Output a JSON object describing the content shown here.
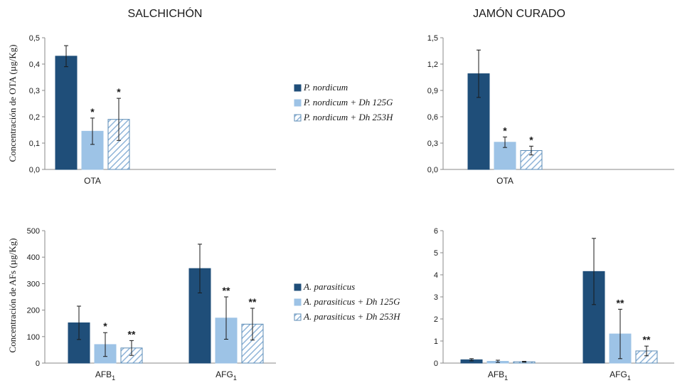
{
  "titles": {
    "left": "SALCHICHÓN",
    "right": "JAMÓN CURADO"
  },
  "colors": {
    "series1": "#1f4e79",
    "series2": "#9dc3e6",
    "series3_stroke": "#5b8bb5",
    "hatch": "#8fb4d8",
    "axis": "#888888"
  },
  "ylabels": {
    "top": "Concentración de OTA (µg/Kg)",
    "bottom": "Concentración de AFs (µg/Kg)"
  },
  "legend_top": [
    {
      "base": "P. nordicum",
      "suffix": ""
    },
    {
      "base": "P. nordicum",
      "suffix": " + Dh 125G"
    },
    {
      "base": "P. nordicum",
      "suffix": " + Dh 253H"
    }
  ],
  "legend_bottom": [
    {
      "base": "A. parasiticus",
      "suffix": ""
    },
    {
      "base": "A. parasiticus",
      "suffix": " + Dh 125G"
    },
    {
      "base": "A. parasiticus",
      "suffix": " + Dh 253H"
    }
  ],
  "chart_data": [
    {
      "type": "bar",
      "panel": "top-left",
      "title": "SALCHICHÓN",
      "ylabel": "Concentración de OTA (µg/Kg)",
      "ylim": [
        0,
        0.5
      ],
      "ticks": [
        "0,0",
        "0,1",
        "0,2",
        "0,3",
        "0,4",
        "0,5"
      ],
      "categories": [
        {
          "base": "OTA",
          "sub": ""
        }
      ],
      "series": [
        {
          "name": "P. nordicum",
          "values": [
            0.43
          ],
          "errors": [
            0.04
          ],
          "marks": [
            ""
          ]
        },
        {
          "name": "P. nordicum + Dh 125G",
          "values": [
            0.145
          ],
          "errors": [
            0.05
          ],
          "marks": [
            "*"
          ]
        },
        {
          "name": "P. nordicum + Dh 253H",
          "values": [
            0.19
          ],
          "errors": [
            0.08
          ],
          "marks": [
            "*"
          ]
        }
      ]
    },
    {
      "type": "bar",
      "panel": "top-right",
      "title": "JAMÓN CURADO",
      "ylabel": "",
      "ylim": [
        0,
        1.5
      ],
      "ticks": [
        "0,0",
        "0,3",
        "0,6",
        "0,9",
        "1,2",
        "1,5"
      ],
      "categories": [
        {
          "base": "OTA",
          "sub": ""
        }
      ],
      "series": [
        {
          "name": "P. nordicum",
          "values": [
            1.09
          ],
          "errors": [
            0.27
          ],
          "marks": [
            ""
          ]
        },
        {
          "name": "P. nordicum + Dh 125G",
          "values": [
            0.31
          ],
          "errors": [
            0.06
          ],
          "marks": [
            "*"
          ]
        },
        {
          "name": "P. nordicum + Dh 253H",
          "values": [
            0.215
          ],
          "errors": [
            0.05
          ],
          "marks": [
            "*"
          ]
        }
      ]
    },
    {
      "type": "bar",
      "panel": "bottom-left",
      "title": "",
      "ylabel": "Concentración de AFs (µg/Kg)",
      "ylim": [
        0,
        500
      ],
      "ticks": [
        "0",
        "100",
        "200",
        "300",
        "400",
        "500"
      ],
      "categories": [
        {
          "base": "AFB",
          "sub": "1"
        },
        {
          "base": "AFG",
          "sub": "1"
        }
      ],
      "series": [
        {
          "name": "A. parasiticus",
          "values": [
            152,
            357
          ],
          "errors": [
            63,
            92
          ],
          "marks": [
            "",
            ""
          ]
        },
        {
          "name": "A. parasiticus + Dh 125G",
          "values": [
            70,
            170
          ],
          "errors": [
            45,
            80
          ],
          "marks": [
            "*",
            "**"
          ]
        },
        {
          "name": "A. parasiticus + Dh 253H",
          "values": [
            57,
            147
          ],
          "errors": [
            28,
            60
          ],
          "marks": [
            "**",
            "**"
          ]
        }
      ]
    },
    {
      "type": "bar",
      "panel": "bottom-right",
      "title": "",
      "ylabel": "",
      "ylim": [
        0,
        6
      ],
      "ticks": [
        "0",
        "1",
        "2",
        "3",
        "4",
        "5",
        "6"
      ],
      "categories": [
        {
          "base": "AFB",
          "sub": "1"
        },
        {
          "base": "AFG",
          "sub": "1"
        }
      ],
      "series": [
        {
          "name": "A. parasiticus",
          "values": [
            0.15,
            4.15
          ],
          "errors": [
            0.05,
            1.5
          ],
          "marks": [
            "",
            ""
          ]
        },
        {
          "name": "A. parasiticus + Dh 125G",
          "values": [
            0.08,
            1.32
          ],
          "errors": [
            0.05,
            1.12
          ],
          "marks": [
            "",
            "**"
          ]
        },
        {
          "name": "A. parasiticus + Dh 253H",
          "values": [
            0.06,
            0.55
          ],
          "errors": [
            0.02,
            0.22
          ],
          "marks": [
            "",
            "**"
          ]
        }
      ]
    }
  ]
}
